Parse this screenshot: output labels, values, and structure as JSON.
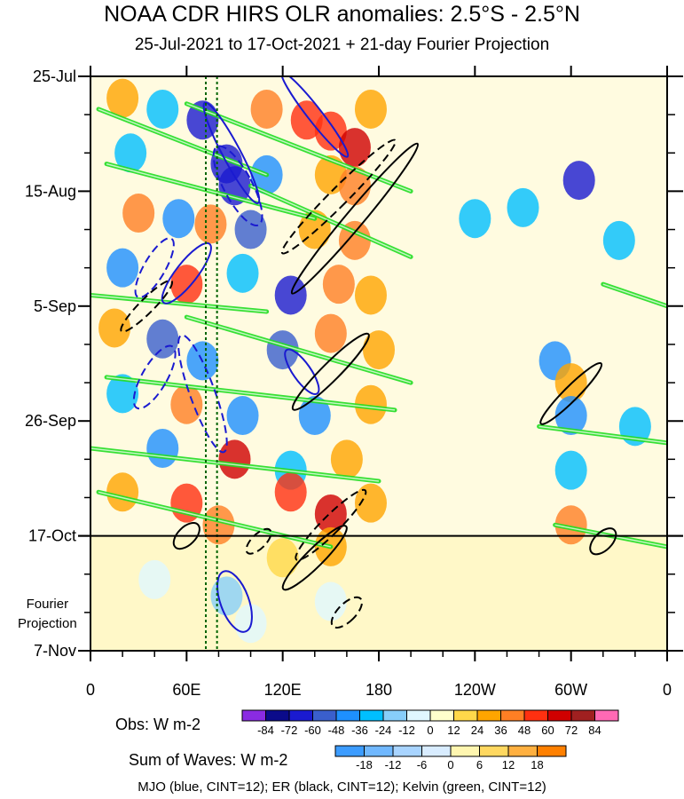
{
  "chart_data": {
    "type": "heatmap",
    "title": "NOAA CDR HIRS OLR anomalies: 2.5°S - 2.5°N",
    "subtitle": "25-Jul-2021 to 17-Oct-2021 + 21-day Fourier Projection",
    "x_ticks": [
      "0",
      "60E",
      "120E",
      "180",
      "120W",
      "60W",
      "0"
    ],
    "x_tick_lons": [
      0,
      60,
      120,
      180,
      240,
      300,
      360
    ],
    "y_ticks": [
      "25-Jul",
      "15-Aug",
      "5-Sep",
      "26-Sep",
      "17-Oct",
      "7-Nov"
    ],
    "y_tick_days": [
      0,
      21,
      42,
      63,
      84,
      105
    ],
    "projection_start_day": 84,
    "projection_label": [
      "Fourier",
      "Projection"
    ],
    "obs_colorbar": {
      "label": "Obs: W m-2",
      "levels": [
        "-84",
        "-72",
        "-60",
        "-48",
        "-36",
        "-24",
        "-12",
        "0",
        "12",
        "24",
        "36",
        "48",
        "60",
        "72",
        "84"
      ],
      "colors": [
        "#8a2be2",
        "#0b0b8a",
        "#1a1ad0",
        "#3a5fcd",
        "#1e90ff",
        "#00bfff",
        "#87cefa",
        "#e0f7ff",
        "#ffffcc",
        "#ffd84a",
        "#ffa500",
        "#ff7f24",
        "#ff3010",
        "#d00000",
        "#a02020",
        "#ff69b4"
      ]
    },
    "wave_colorbar": {
      "label": "Sum of Waves: W m-2",
      "levels": [
        "-18",
        "-12",
        "-6",
        "0",
        "6",
        "12",
        "18"
      ],
      "colors": [
        "#3c9cff",
        "#70b8ff",
        "#a8d4ff",
        "#d8ecff",
        "#fff6b0",
        "#ffd860",
        "#ffb040",
        "#ff8000"
      ]
    },
    "footer": "MJO (blue, CINT=12); ER (black, CINT=12); Kelvin (green, CINT=12)",
    "contour_colors": {
      "mjo": "#1a1ad0",
      "er": "#000000",
      "kelvin": "#22dd22"
    },
    "cells": [
      {
        "lon": 20,
        "day": 4,
        "v": 30
      },
      {
        "lon": 45,
        "day": 6,
        "v": -30
      },
      {
        "lon": 70,
        "day": 8,
        "v": -60
      },
      {
        "lon": 110,
        "day": 6,
        "v": 40
      },
      {
        "lon": 135,
        "day": 8,
        "v": 60
      },
      {
        "lon": 150,
        "day": 10,
        "v": 50
      },
      {
        "lon": 165,
        "day": 13,
        "v": 65
      },
      {
        "lon": 175,
        "day": 6,
        "v": 30
      },
      {
        "lon": 25,
        "day": 14,
        "v": -30
      },
      {
        "lon": 85,
        "day": 16,
        "v": -70
      },
      {
        "lon": 90,
        "day": 20,
        "v": -60
      },
      {
        "lon": 110,
        "day": 18,
        "v": -40
      },
      {
        "lon": 150,
        "day": 18,
        "v": 35
      },
      {
        "lon": 165,
        "day": 20,
        "v": 40
      },
      {
        "lon": 305,
        "day": 19,
        "v": -70
      },
      {
        "lon": 30,
        "day": 25,
        "v": 40
      },
      {
        "lon": 55,
        "day": 26,
        "v": -40
      },
      {
        "lon": 75,
        "day": 27,
        "v": 45
      },
      {
        "lon": 100,
        "day": 28,
        "v": -50
      },
      {
        "lon": 140,
        "day": 28,
        "v": 35
      },
      {
        "lon": 165,
        "day": 30,
        "v": 45
      },
      {
        "lon": 240,
        "day": 26,
        "v": -30
      },
      {
        "lon": 270,
        "day": 24,
        "v": -30
      },
      {
        "lon": 330,
        "day": 30,
        "v": -30
      },
      {
        "lon": 20,
        "day": 35,
        "v": -40
      },
      {
        "lon": 60,
        "day": 38,
        "v": 55
      },
      {
        "lon": 95,
        "day": 36,
        "v": -30
      },
      {
        "lon": 125,
        "day": 40,
        "v": -60
      },
      {
        "lon": 155,
        "day": 38,
        "v": 40
      },
      {
        "lon": 175,
        "day": 40,
        "v": 35
      },
      {
        "lon": 15,
        "day": 46,
        "v": 30
      },
      {
        "lon": 45,
        "day": 48,
        "v": -50
      },
      {
        "lon": 70,
        "day": 52,
        "v": -40
      },
      {
        "lon": 120,
        "day": 50,
        "v": -50
      },
      {
        "lon": 150,
        "day": 47,
        "v": 40
      },
      {
        "lon": 180,
        "day": 50,
        "v": 30
      },
      {
        "lon": 290,
        "day": 52,
        "v": -40
      },
      {
        "lon": 300,
        "day": 56,
        "v": 30
      },
      {
        "lon": 20,
        "day": 58,
        "v": -30
      },
      {
        "lon": 60,
        "day": 60,
        "v": 40
      },
      {
        "lon": 95,
        "day": 62,
        "v": -40
      },
      {
        "lon": 140,
        "day": 62,
        "v": -40
      },
      {
        "lon": 175,
        "day": 60,
        "v": 35
      },
      {
        "lon": 300,
        "day": 62,
        "v": -40
      },
      {
        "lon": 340,
        "day": 64,
        "v": -30
      },
      {
        "lon": 45,
        "day": 68,
        "v": -40
      },
      {
        "lon": 90,
        "day": 70,
        "v": 65
      },
      {
        "lon": 125,
        "day": 72,
        "v": -30
      },
      {
        "lon": 160,
        "day": 70,
        "v": 30
      },
      {
        "lon": 300,
        "day": 72,
        "v": -30
      },
      {
        "lon": 20,
        "day": 76,
        "v": 30
      },
      {
        "lon": 60,
        "day": 78,
        "v": 50
      },
      {
        "lon": 125,
        "day": 76,
        "v": 55
      },
      {
        "lon": 150,
        "day": 80,
        "v": 70
      },
      {
        "lon": 175,
        "day": 78,
        "v": 35
      },
      {
        "lon": 300,
        "day": 82,
        "v": 40
      },
      {
        "lon": 80,
        "day": 82,
        "v": 40
      },
      {
        "lon": 120,
        "day": 88,
        "v": 20
      },
      {
        "lon": 150,
        "day": 86,
        "v": 30
      },
      {
        "lon": 40,
        "day": 92,
        "v": -10
      },
      {
        "lon": 85,
        "day": 95,
        "v": -14
      },
      {
        "lon": 150,
        "day": 96,
        "v": -8
      },
      {
        "lon": 100,
        "day": 100,
        "v": -10
      }
    ],
    "mjo_ellipses": [
      {
        "lon": 88,
        "day": 14,
        "rx": 10,
        "ry": 64,
        "rot": -28
      },
      {
        "lon": 92,
        "day": 20,
        "rx": 16,
        "ry": 50,
        "rot": -28
      },
      {
        "lon": 60,
        "day": 36,
        "rx": 12,
        "ry": 42,
        "rot": 38
      },
      {
        "lon": 40,
        "day": 35,
        "rx": 12,
        "ry": 38,
        "rot": 30
      },
      {
        "lon": 132,
        "day": 54,
        "rx": 10,
        "ry": 30,
        "rot": -35
      },
      {
        "lon": 70,
        "day": 58,
        "rx": 14,
        "ry": 70,
        "rot": -20
      },
      {
        "lon": 90,
        "day": 96,
        "rx": 16,
        "ry": 36,
        "rot": -20
      },
      {
        "lon": 40,
        "day": 55,
        "rx": 14,
        "ry": 40,
        "rot": 30
      },
      {
        "lon": 140,
        "day": 7,
        "rx": 8,
        "ry": 60,
        "rot": -38
      }
    ],
    "er_ellipses": [
      {
        "lon": 165,
        "day": 26,
        "rx": 10,
        "ry": 110,
        "rot": 40
      },
      {
        "lon": 155,
        "day": 22,
        "rx": 10,
        "ry": 90,
        "rot": 45
      },
      {
        "lon": 150,
        "day": 54,
        "rx": 10,
        "ry": 60,
        "rot": 45
      },
      {
        "lon": 35,
        "day": 42,
        "rx": 8,
        "ry": 40,
        "rot": 45
      },
      {
        "lon": 300,
        "day": 58,
        "rx": 8,
        "ry": 48,
        "rot": 45
      },
      {
        "lon": 150,
        "day": 82,
        "rx": 10,
        "ry": 55,
        "rot": 45
      },
      {
        "lon": 140,
        "day": 88,
        "rx": 10,
        "ry": 50,
        "rot": 45
      },
      {
        "lon": 160,
        "day": 98,
        "rx": 10,
        "ry": 22,
        "rot": 45
      },
      {
        "lon": 60,
        "day": 84,
        "rx": 10,
        "ry": 18,
        "rot": 45
      },
      {
        "lon": 105,
        "day": 85,
        "rx": 8,
        "ry": 18,
        "rot": 45
      },
      {
        "lon": 320,
        "day": 85,
        "rx": 10,
        "ry": 18,
        "rot": 45
      }
    ],
    "kelvin_bands": [
      {
        "lon0": 5,
        "day0": 6,
        "lon1": 110,
        "day1": 18
      },
      {
        "lon0": 10,
        "day0": 16,
        "lon1": 140,
        "day1": 26
      },
      {
        "lon0": 60,
        "day0": 5,
        "lon1": 200,
        "day1": 21
      },
      {
        "lon0": 100,
        "day0": 20,
        "lon1": 200,
        "day1": 33
      },
      {
        "lon0": 0,
        "day0": 40,
        "lon1": 110,
        "day1": 43
      },
      {
        "lon0": 60,
        "day0": 44,
        "lon1": 200,
        "day1": 56
      },
      {
        "lon0": 10,
        "day0": 55,
        "lon1": 190,
        "day1": 61
      },
      {
        "lon0": 5,
        "day0": 76,
        "lon1": 150,
        "day1": 86
      },
      {
        "lon0": 280,
        "day0": 64,
        "lon1": 360,
        "day1": 67
      },
      {
        "lon0": 320,
        "day0": 38,
        "lon1": 360,
        "day1": 42
      },
      {
        "lon0": 290,
        "day0": 82,
        "lon1": 360,
        "day1": 86
      },
      {
        "lon0": 0,
        "day0": 68,
        "lon1": 180,
        "day1": 74
      }
    ]
  }
}
